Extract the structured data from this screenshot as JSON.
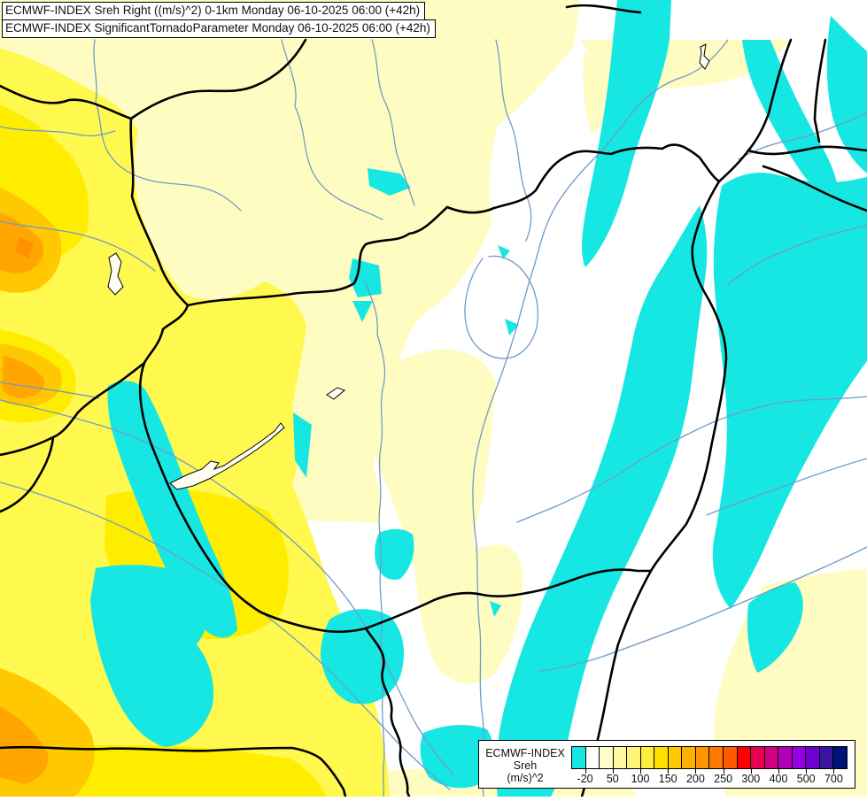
{
  "title_bar": {
    "line1": "ECMWF-INDEX Sreh Right ((m/s)^2) 0-1km Monday 06-10-2025 06:00 (+42h)",
    "line2": "ECMWF-INDEX SignificantTornadoParameter Monday 06-10-2025 06:00 (+42h)"
  },
  "legend": {
    "product": "ECMWF-INDEX",
    "parameter": "Sreh",
    "unit": "(m/s)^2",
    "ticks": [
      "-20",
      "50",
      "100",
      "150",
      "200",
      "250",
      "300",
      "400",
      "500",
      "700"
    ],
    "colors": [
      "#17e7e2",
      "#ffffff",
      "#fffdc8",
      "#fff9a0",
      "#fff478",
      "#ffee3c",
      "#ffe000",
      "#ffc800",
      "#ffb000",
      "#ff9600",
      "#ff7800",
      "#ff5a00",
      "#ff0000",
      "#e60050",
      "#d20082",
      "#b400b4",
      "#9600e6",
      "#6e00d2",
      "#3c14a0",
      "#001478"
    ]
  },
  "map": {
    "palette": {
      "background": "#ffffff",
      "cream": "#fffcc2",
      "yellow": "#fff84f",
      "deep_yellow": "#ffed00",
      "amber": "#ffc800",
      "orange": "#ffa600",
      "deep_orange": "#ff9000",
      "cyan": "#17e7e2",
      "river": "#6f9bc8",
      "border": "#000000"
    }
  }
}
